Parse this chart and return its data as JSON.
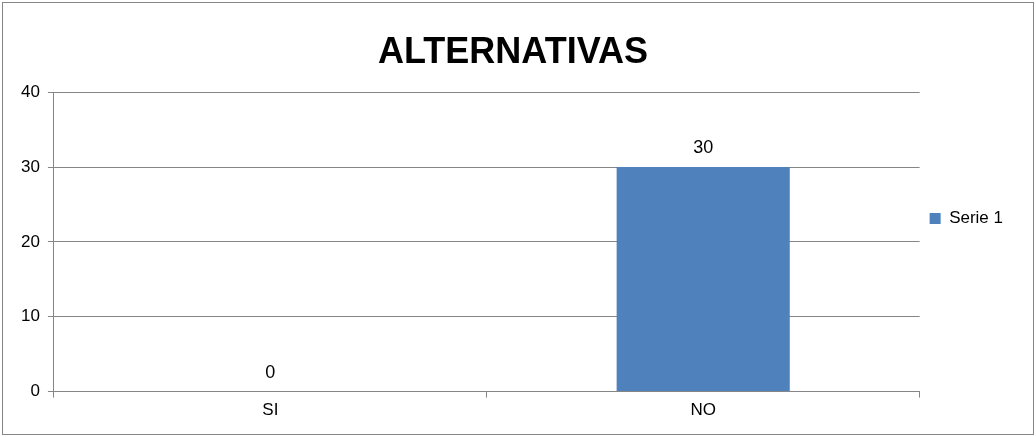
{
  "chart_data": {
    "type": "bar",
    "title": "ALTERNATIVAS",
    "categories": [
      "SI",
      "NO"
    ],
    "series": [
      {
        "name": "Serie 1",
        "color": "#4f81bd",
        "values": [
          0,
          30
        ]
      }
    ],
    "ylim": [
      0,
      40
    ],
    "yticks": [
      0,
      10,
      20,
      30,
      40
    ],
    "grid": "y",
    "legend": "right",
    "data_labels": true
  }
}
